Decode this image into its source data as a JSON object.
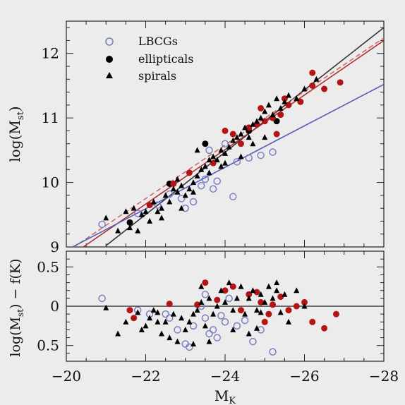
{
  "chart_data": [
    {
      "type": "scatter",
      "panel": "top",
      "xlabel_base": "M",
      "xlabel_sub": "K",
      "ylabel_base": "log(M",
      "ylabel_sub": "st",
      "ylabel_end": ")",
      "xlim": [
        -20,
        -28
      ],
      "ylim": [
        9,
        12.5
      ],
      "x_ticks": [
        -20,
        -22,
        -24,
        -26,
        -28
      ],
      "x_tick_labels": [
        "−20",
        "−22",
        "−24",
        "−26",
        "−28"
      ],
      "y_ticks": [
        9,
        10,
        11,
        12
      ],
      "y_tick_labels": [
        "9",
        "10",
        "11",
        "12"
      ],
      "legend_position": "top-left",
      "legend": [
        {
          "label": "LBCGs",
          "marker": "open-circle",
          "color": "#7b7fc4"
        },
        {
          "label": "ellipticals",
          "marker": "filled-circle",
          "color": "#000000"
        },
        {
          "label": "spirals",
          "marker": "filled-triangle",
          "color": "#000000"
        }
      ],
      "fit_lines": [
        {
          "color": "#333333",
          "style": "solid",
          "points": [
            [
              -21.0,
              9.02
            ],
            [
              -28,
              12.4
            ]
          ]
        },
        {
          "color": "#b03030",
          "style": "solid",
          "points": [
            [
              -20,
              8.82
            ],
            [
              -28,
              12.2
            ]
          ]
        },
        {
          "color": "#d06a6a",
          "style": "dashed",
          "points": [
            [
              -20,
              8.92
            ],
            [
              -28,
              12.24
            ]
          ]
        },
        {
          "color": "#5a5ab8",
          "style": "solid",
          "points": [
            [
              -20,
              8.95
            ],
            [
              -28,
              11.52
            ]
          ]
        }
      ],
      "series": [
        {
          "name": "LBCGs",
          "marker": "open-circle",
          "color": "#7b7fc4",
          "points": [
            [
              -20.9,
              9.35
            ],
            [
              -21.8,
              9.52
            ],
            [
              -22.6,
              9.82
            ],
            [
              -22.9,
              9.75
            ],
            [
              -23.0,
              9.6
            ],
            [
              -23.4,
              9.95
            ],
            [
              -23.5,
              10.05
            ],
            [
              -23.6,
              10.5
            ],
            [
              -23.7,
              9.9
            ],
            [
              -23.8,
              10.02
            ],
            [
              -24.0,
              10.6
            ],
            [
              -24.3,
              10.32
            ],
            [
              -24.6,
              10.38
            ],
            [
              -24.9,
              10.42
            ],
            [
              -25.2,
              10.47
            ],
            [
              -24.2,
              9.78
            ],
            [
              -23.2,
              9.7
            ],
            [
              -22.3,
              9.65
            ]
          ]
        },
        {
          "name": "ellipticals",
          "marker": "filled-circle",
          "color": "#000000",
          "points": [
            [
              -21.6,
              9.38
            ],
            [
              -22.6,
              9.98
            ],
            [
              -23.5,
              10.6
            ],
            [
              -24.6,
              10.8
            ],
            [
              -25.3,
              10.95
            ]
          ]
        },
        {
          "name": "ellipticals (red)",
          "marker": "filled-circle",
          "color": "#b31414",
          "points": [
            [
              -22.1,
              9.65
            ],
            [
              -22.7,
              9.98
            ],
            [
              -23.1,
              10.15
            ],
            [
              -23.7,
              10.3
            ],
            [
              -24.0,
              10.8
            ],
            [
              -24.2,
              10.75
            ],
            [
              -24.4,
              10.6
            ],
            [
              -24.6,
              10.85
            ],
            [
              -24.8,
              10.9
            ],
            [
              -25.0,
              10.95
            ],
            [
              -25.2,
              11.0
            ],
            [
              -25.4,
              11.05
            ],
            [
              -25.6,
              11.2
            ],
            [
              -25.5,
              11.3
            ],
            [
              -25.9,
              11.25
            ],
            [
              -26.2,
              11.5
            ],
            [
              -26.5,
              11.45
            ],
            [
              -26.2,
              11.7
            ],
            [
              -26.9,
              11.55
            ],
            [
              -25.3,
              10.75
            ],
            [
              -24.9,
              11.15
            ]
          ]
        },
        {
          "name": "spirals",
          "marker": "filled-triangle",
          "color": "#000000",
          "points": [
            [
              -21.0,
              9.45
            ],
            [
              -21.3,
              9.25
            ],
            [
              -21.5,
              9.55
            ],
            [
              -21.7,
              9.6
            ],
            [
              -21.8,
              9.25
            ],
            [
              -21.9,
              9.5
            ],
            [
              -22.0,
              9.55
            ],
            [
              -22.1,
              9.4
            ],
            [
              -22.2,
              9.7
            ],
            [
              -22.3,
              9.55
            ],
            [
              -22.4,
              9.6
            ],
            [
              -22.5,
              9.8
            ],
            [
              -22.6,
              9.7
            ],
            [
              -22.7,
              9.9
            ],
            [
              -22.8,
              9.85
            ],
            [
              -22.9,
              9.95
            ],
            [
              -23.0,
              9.8
            ],
            [
              -23.1,
              9.9
            ],
            [
              -23.2,
              10.0
            ],
            [
              -23.3,
              10.1
            ],
            [
              -23.4,
              10.2
            ],
            [
              -23.5,
              10.25
            ],
            [
              -23.6,
              10.15
            ],
            [
              -23.7,
              10.4
            ],
            [
              -23.8,
              10.35
            ],
            [
              -23.9,
              10.5
            ],
            [
              -24.0,
              10.45
            ],
            [
              -24.1,
              10.55
            ],
            [
              -24.2,
              10.65
            ],
            [
              -24.3,
              10.7
            ],
            [
              -24.4,
              10.75
            ],
            [
              -24.5,
              10.85
            ],
            [
              -24.6,
              10.7
            ],
            [
              -24.7,
              10.9
            ],
            [
              -24.8,
              10.95
            ],
            [
              -24.9,
              11.0
            ],
            [
              -25.0,
              11.1
            ],
            [
              -25.1,
              11.2
            ],
            [
              -25.2,
              11.05
            ],
            [
              -25.3,
              11.3
            ],
            [
              -25.4,
              11.15
            ],
            [
              -25.5,
              11.25
            ],
            [
              -25.6,
              11.35
            ],
            [
              -25.8,
              11.3
            ],
            [
              -26.0,
              11.45
            ],
            [
              -26.3,
              11.6
            ],
            [
              -23.3,
              10.5
            ],
            [
              -22.9,
              9.6
            ],
            [
              -24.0,
              10.3
            ],
            [
              -23.9,
              10.25
            ],
            [
              -24.4,
              10.4
            ],
            [
              -25.0,
              10.7
            ],
            [
              -24.7,
              10.6
            ],
            [
              -23.2,
              9.85
            ],
            [
              -22.4,
              9.45
            ],
            [
              -21.6,
              9.3
            ],
            [
              -22.8,
              10.05
            ],
            [
              -23.6,
              10.35
            ]
          ]
        }
      ]
    },
    {
      "type": "scatter",
      "panel": "bottom",
      "ylabel": "log(M",
      "ylabel_sub": "st",
      "ylabel_end": ") − f(K)",
      "xlim": [
        -20,
        -28
      ],
      "ylim": [
        -0.7,
        0.7
      ],
      "y_ticks": [
        0.5,
        0,
        -0.5
      ],
      "y_tick_labels": [
        "0.5",
        "0",
        "0.5"
      ],
      "zero_line": true,
      "series": [
        {
          "name": "LBCGs",
          "marker": "open-circle",
          "color": "#7b7fc4",
          "points": [
            [
              -20.9,
              0.1
            ],
            [
              -21.8,
              -0.05
            ],
            [
              -22.1,
              -0.1
            ],
            [
              -22.5,
              -0.1
            ],
            [
              -22.8,
              -0.3
            ],
            [
              -23.0,
              -0.48
            ],
            [
              -23.1,
              -0.52
            ],
            [
              -23.2,
              -0.25
            ],
            [
              -23.4,
              0.0
            ],
            [
              -23.5,
              -0.15
            ],
            [
              -23.6,
              -0.35
            ],
            [
              -23.7,
              -0.3
            ],
            [
              -23.8,
              -0.4
            ],
            [
              -23.9,
              -0.12
            ],
            [
              -24.0,
              -0.2
            ],
            [
              -24.1,
              0.1
            ],
            [
              -24.3,
              -0.25
            ],
            [
              -24.5,
              -0.18
            ],
            [
              -24.7,
              -0.45
            ],
            [
              -24.9,
              -0.3
            ],
            [
              -25.2,
              -0.58
            ],
            [
              -23.5,
              0.15
            ],
            [
              -22.6,
              -0.15
            ]
          ]
        },
        {
          "name": "ellipticals",
          "marker": "filled-circle",
          "color": "#b31414",
          "points": [
            [
              -21.6,
              -0.05
            ],
            [
              -21.7,
              -0.15
            ],
            [
              -22.6,
              0.03
            ],
            [
              -23.5,
              0.3
            ],
            [
              -23.8,
              0.08
            ],
            [
              -24.0,
              0.2
            ],
            [
              -24.2,
              0.25
            ],
            [
              -24.4,
              -0.05
            ],
            [
              -24.6,
              0.15
            ],
            [
              -24.8,
              0.18
            ],
            [
              -25.0,
              -0.2
            ],
            [
              -25.2,
              0.02
            ],
            [
              -25.4,
              0.12
            ],
            [
              -25.6,
              -0.05
            ],
            [
              -25.8,
              0.0
            ],
            [
              -26.0,
              0.05
            ],
            [
              -26.2,
              -0.2
            ],
            [
              -26.5,
              -0.28
            ],
            [
              -26.8,
              -0.1
            ],
            [
              -25.1,
              -0.1
            ],
            [
              -24.9,
              0.05
            ],
            [
              -23.3,
              0.02
            ]
          ]
        },
        {
          "name": "spirals",
          "marker": "filled-triangle",
          "color": "#000000",
          "points": [
            [
              -21.0,
              -0.02
            ],
            [
              -21.3,
              -0.35
            ],
            [
              -21.5,
              -0.2
            ],
            [
              -21.8,
              -0.08
            ],
            [
              -21.9,
              -0.3
            ],
            [
              -22.0,
              -0.25
            ],
            [
              -22.1,
              -0.15
            ],
            [
              -22.2,
              -0.05
            ],
            [
              -22.3,
              -0.2
            ],
            [
              -22.4,
              -0.35
            ],
            [
              -22.5,
              -0.2
            ],
            [
              -22.6,
              -0.4
            ],
            [
              -22.7,
              -0.1
            ],
            [
              -22.8,
              -0.45
            ],
            [
              -22.9,
              -0.15
            ],
            [
              -23.0,
              -0.3
            ],
            [
              -23.1,
              -0.2
            ],
            [
              -23.2,
              -0.1
            ],
            [
              -23.3,
              -0.05
            ],
            [
              -23.4,
              0.05
            ],
            [
              -23.5,
              -0.25
            ],
            [
              -23.6,
              0.1
            ],
            [
              -23.7,
              -0.1
            ],
            [
              -23.8,
              0.0
            ],
            [
              -23.9,
              0.2
            ],
            [
              -24.0,
              0.05
            ],
            [
              -24.1,
              0.3
            ],
            [
              -24.2,
              -0.05
            ],
            [
              -24.3,
              0.1
            ],
            [
              -24.4,
              0.25
            ],
            [
              -24.5,
              -0.1
            ],
            [
              -24.6,
              0.1
            ],
            [
              -24.7,
              0.2
            ],
            [
              -24.8,
              -0.05
            ],
            [
              -24.9,
              0.15
            ],
            [
              -25.0,
              0.05
            ],
            [
              -25.1,
              0.25
            ],
            [
              -25.2,
              0.1
            ],
            [
              -25.3,
              0.3
            ],
            [
              -25.4,
              -0.08
            ],
            [
              -25.5,
              0.15
            ],
            [
              -25.6,
              -0.2
            ],
            [
              -25.8,
              0.2
            ],
            [
              -23.4,
              0.25
            ],
            [
              -24.2,
              -0.3
            ],
            [
              -24.6,
              -0.35
            ],
            [
              -23.2,
              -0.48
            ],
            [
              -22.3,
              -0.08
            ],
            [
              -24.9,
              -0.08
            ],
            [
              -25.3,
              0.2
            ],
            [
              -26.0,
              0.0
            ],
            [
              -23.6,
              -0.45
            ],
            [
              -24.8,
              -0.28
            ]
          ]
        }
      ]
    }
  ]
}
